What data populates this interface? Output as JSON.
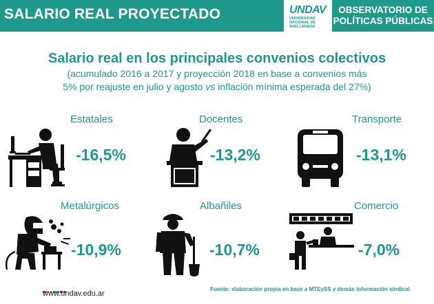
{
  "header": {
    "title": "SALARIO REAL PROYECTADO",
    "logo_mark": "UNDAV",
    "logo_sub": [
      "UNIVERSIDAD",
      "NACIONAL DE",
      "AVELLANEDA"
    ],
    "observatory": [
      "OBSERVATORIO DE",
      "POLÍTICAS PÚBLICAS"
    ]
  },
  "content": {
    "title": "Salario real en los principales convenios colectivos",
    "subtitle_1": "(acumulado 2016 a 2017 y proyección 2018 en base a convenios más",
    "subtitle_2_a": "5% por reajuste en julio y agosto ",
    "subtitle_2_vs": "vs",
    "subtitle_2_b": " inflación mínima esperada del 27%)"
  },
  "sectors": [
    {
      "label": "Estatales",
      "value": "-16,5%",
      "icon": "office-worker-icon"
    },
    {
      "label": "Docentes",
      "value": "-13,2%",
      "icon": "teacher-icon"
    },
    {
      "label": "Transporte",
      "value": "-13,1%",
      "icon": "bus-icon"
    },
    {
      "label": "Metalúrgicos",
      "value": "-10,9%",
      "icon": "welder-icon"
    },
    {
      "label": "Albañiles",
      "value": "-10,7%",
      "icon": "construction-worker-icon"
    },
    {
      "label": "Comercio",
      "value": "-7,0%",
      "icon": "shop-icon"
    }
  ],
  "footer": {
    "website": "www.undav.edu.ar",
    "source": "Fuente: elaboración propia en base a MTEySS y demás información sindical",
    "dot_colors": [
      "#e6007e",
      "#f39200",
      "#95c11f",
      "#009fe3",
      "#1e9a8a",
      "#e30613",
      "#7f3f98"
    ]
  },
  "colors": {
    "accent": "#1e9a8a",
    "icon": "#111111"
  }
}
